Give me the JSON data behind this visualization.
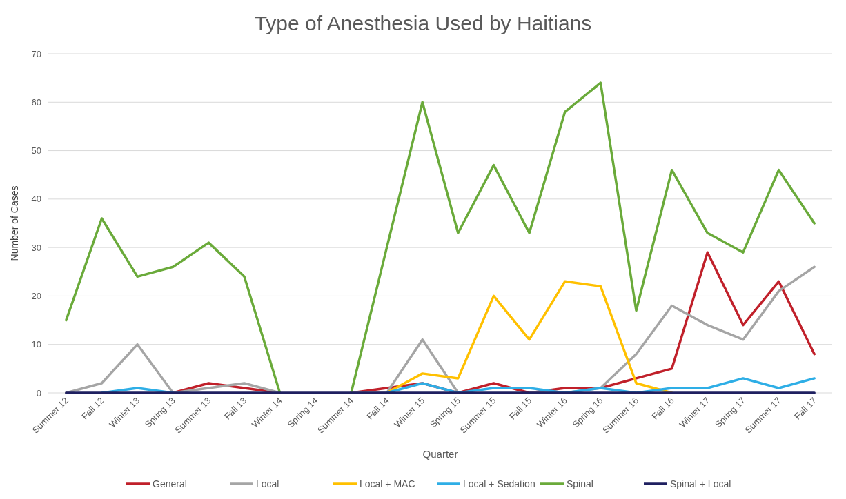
{
  "chart_data": {
    "type": "line",
    "title": "Type of Anesthesia Used by Haitians",
    "xlabel": "Quarter",
    "ylabel": "Number of Cases",
    "categories": [
      "Summer 12",
      "Fall 12",
      "Winter 13",
      "Spring 13",
      "Summer 13",
      "Fall 13",
      "Winter 14",
      "Spring 14",
      "Summer 14",
      "Fall 14",
      "Winter 15",
      "Spring 15",
      "Summer 15",
      "Fall 15",
      "Winter 16",
      "Spring 16",
      "Summer 16",
      "Fall 16",
      "Winter 17",
      "Spring 17",
      "Summer 17",
      "Fall 17"
    ],
    "series": [
      {
        "name": "General",
        "color": "#c0202a",
        "values": [
          null,
          null,
          null,
          0,
          2,
          1,
          0,
          null,
          0,
          1,
          2,
          0,
          2,
          0,
          1,
          1,
          3,
          5,
          29,
          14,
          23,
          8
        ]
      },
      {
        "name": "Local",
        "color": "#a5a5a5",
        "values": [
          0,
          2,
          10,
          0,
          1,
          2,
          0,
          null,
          0,
          0,
          11,
          0,
          null,
          0,
          0,
          1,
          8,
          18,
          14,
          11,
          21,
          26
        ]
      },
      {
        "name": "Local + MAC",
        "color": "#ffc000",
        "values": [
          null,
          null,
          null,
          null,
          null,
          null,
          null,
          null,
          null,
          0,
          4,
          3,
          20,
          11,
          23,
          22,
          2,
          0,
          null,
          null,
          null,
          null
        ]
      },
      {
        "name": "Local + Sedation",
        "color": "#2eaee6",
        "values": [
          null,
          0,
          1,
          0,
          null,
          null,
          null,
          null,
          null,
          0,
          2,
          0,
          1,
          1,
          0,
          1,
          0,
          1,
          1,
          3,
          1,
          3
        ]
      },
      {
        "name": "Spinal",
        "color": "#6aaa3a",
        "values": [
          15,
          36,
          24,
          26,
          31,
          24,
          0,
          null,
          0,
          30,
          60,
          33,
          47,
          33,
          58,
          64,
          17,
          46,
          33,
          29,
          46,
          35
        ]
      },
      {
        "name": "Spinal + Local",
        "color": "#1f2060",
        "values": [
          0,
          0,
          0,
          0,
          0,
          0,
          0,
          0,
          0,
          0,
          0,
          0,
          0,
          0,
          0,
          0,
          0,
          0,
          0,
          0,
          0,
          0
        ]
      }
    ],
    "ylim": [
      0,
      70
    ],
    "yticks": [
      0,
      10,
      20,
      30,
      40,
      50,
      60,
      70
    ],
    "grid": "y",
    "legend": "bottom",
    "marker": "none",
    "line_style": "solid"
  }
}
